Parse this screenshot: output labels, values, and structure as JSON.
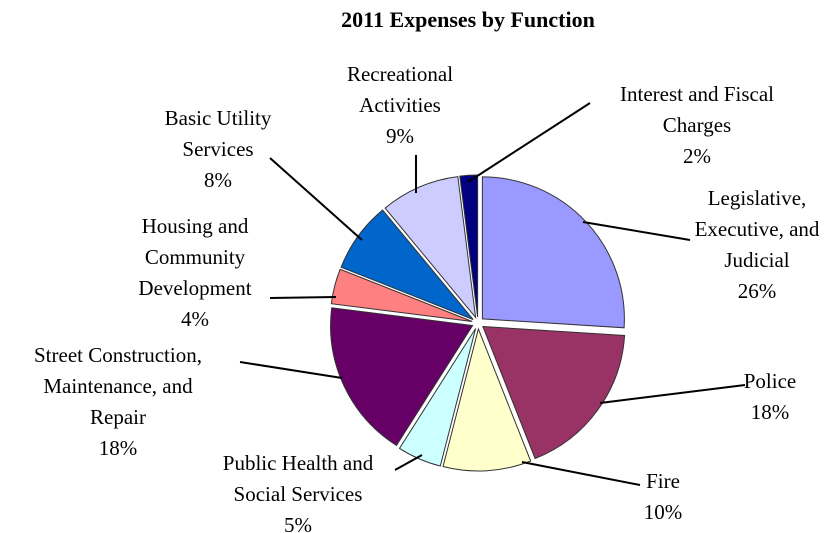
{
  "chart_data": {
    "type": "pie",
    "title": "2011 Expenses by Function",
    "categories": [
      [
        "Legislative,",
        "Executive, and",
        "Judicial"
      ],
      [
        "Police"
      ],
      [
        "Fire"
      ],
      [
        "Public Health and",
        "Social Services"
      ],
      [
        "Street Construction,",
        "Maintenance, and",
        "Repair"
      ],
      [
        "Housing and",
        "Community",
        "Development"
      ],
      [
        "Basic Utility",
        "Services"
      ],
      [
        "Recreational",
        "Activities"
      ],
      [
        "Interest and Fiscal",
        "Charges"
      ]
    ],
    "values": [
      26,
      18,
      10,
      5,
      18,
      4,
      8,
      9,
      2
    ],
    "value_labels": [
      "26%",
      "18%",
      "10%",
      "5%",
      "18%",
      "4%",
      "8%",
      "9%",
      "2%"
    ],
    "colors": [
      "#9999ff",
      "#993366",
      "#ffffcc",
      "#ccffff",
      "#660066",
      "#ff8080",
      "#0066cc",
      "#ccccff",
      "#000080"
    ]
  }
}
